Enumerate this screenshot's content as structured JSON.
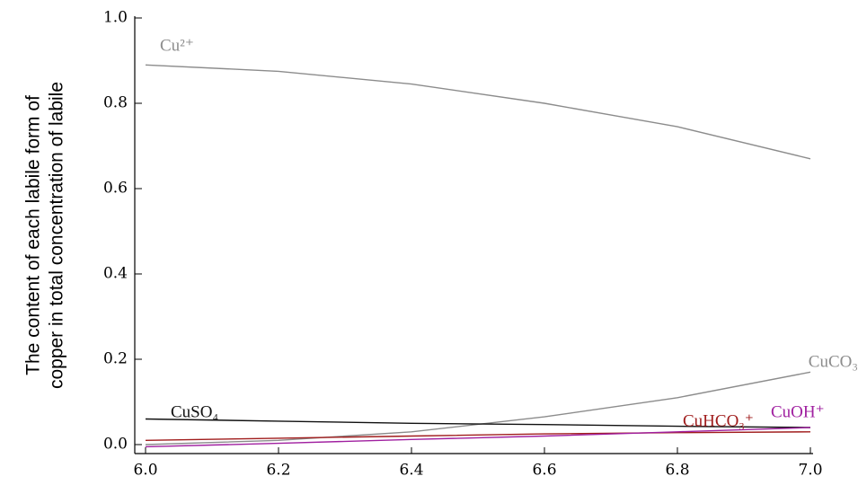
{
  "chart_data": {
    "type": "line",
    "y_label": [
      "The content of each labile form  of",
      "copper in total concentration of labile"
    ],
    "x": [
      6.0,
      6.2,
      6.4,
      6.6,
      6.8,
      7.0
    ],
    "xlim": [
      6.0,
      7.0
    ],
    "xticks": [
      {
        "value": 6,
        "label": "6.0"
      },
      6.2,
      6.4,
      6.6,
      6.8,
      {
        "value": 7,
        "label": "7.0"
      }
    ],
    "ylim": [
      0,
      1
    ],
    "yticks": [
      {
        "value": 0,
        "label": "0.0"
      },
      0.2,
      0.4,
      0.6,
      0.8,
      {
        "value": 1,
        "label": "1.0"
      }
    ],
    "series": [
      {
        "name": "Cu²⁺",
        "color": "#8c8c8c",
        "values": [
          0.89,
          0.875,
          0.845,
          0.8,
          0.745,
          0.67
        ]
      },
      {
        "name": "CuCO₃",
        "color": "#8c8c8c",
        "values": [
          0.0,
          0.01,
          0.03,
          0.065,
          0.11,
          0.17
        ]
      },
      {
        "name": "CuSO₄",
        "color": "#111111",
        "values": [
          0.06,
          0.055,
          0.05,
          0.047,
          0.043,
          0.04
        ]
      },
      {
        "name": "CuHCO₃⁺",
        "color": "#a01c1c",
        "values": [
          0.01,
          0.015,
          0.02,
          0.025,
          0.028,
          0.03
        ]
      },
      {
        "name": "CuOH⁺",
        "color": "#a020a0",
        "values": [
          -0.005,
          0.003,
          0.012,
          0.02,
          0.03,
          0.04
        ]
      }
    ]
  }
}
